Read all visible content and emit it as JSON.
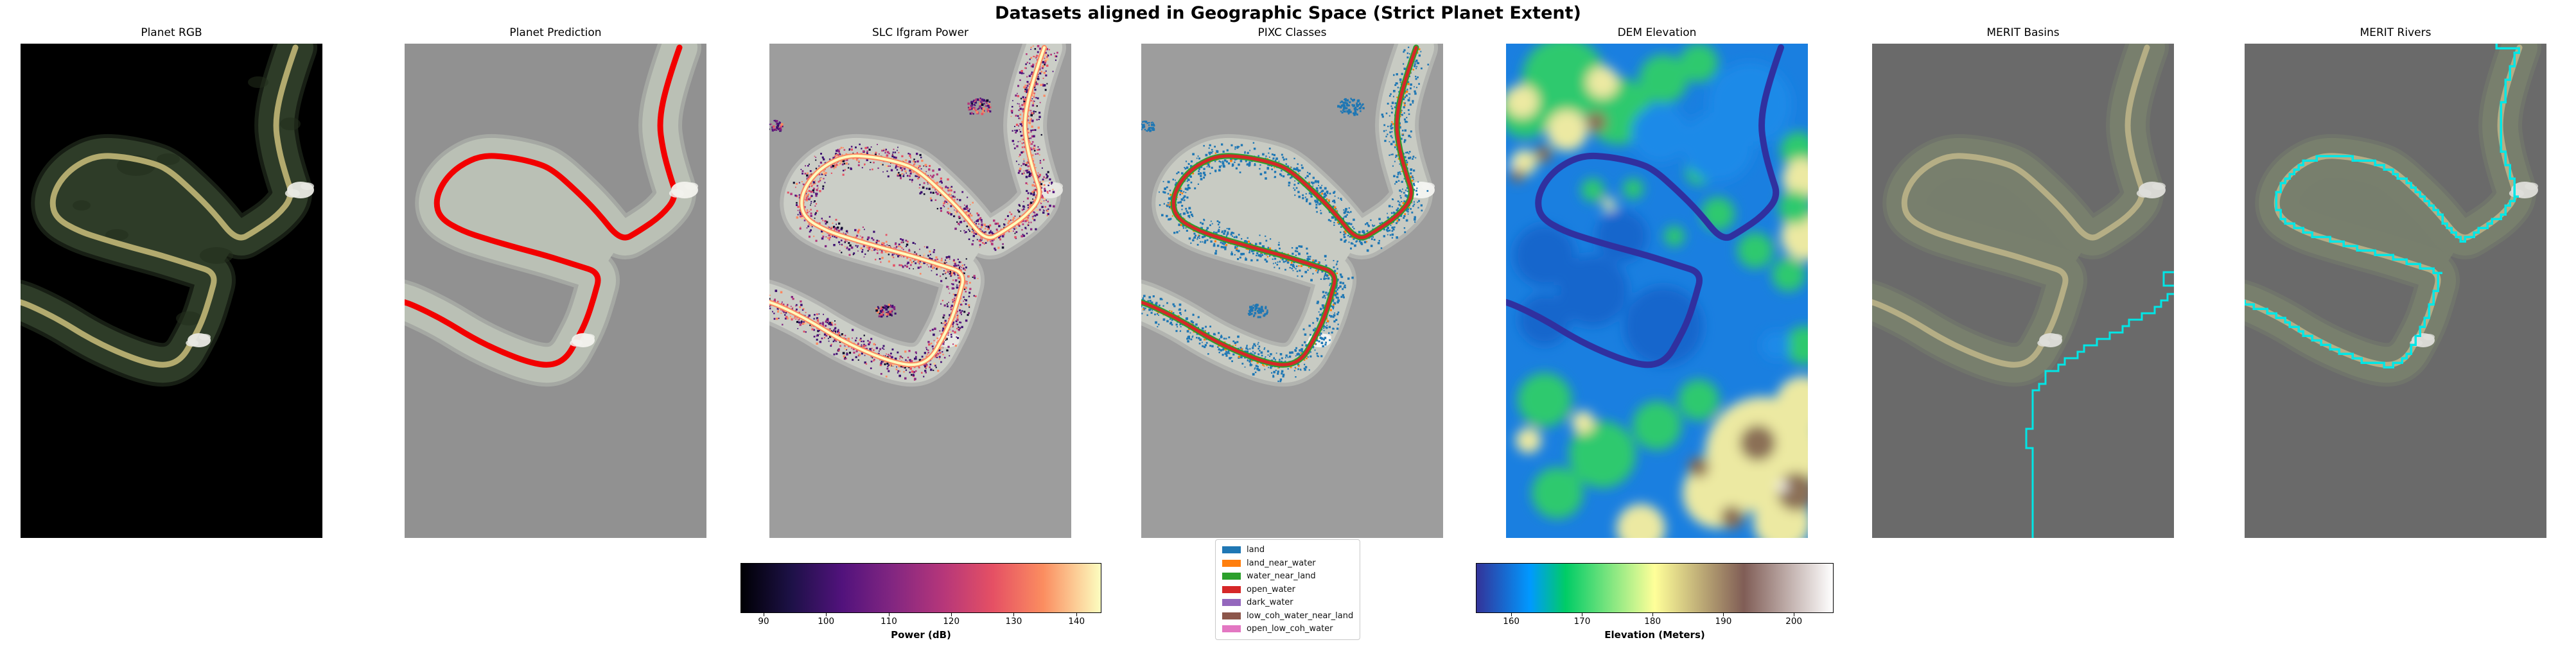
{
  "figure": {
    "title": "Datasets aligned in Geographic Space (Strict Planet Extent)",
    "background": "#ffffff"
  },
  "panels": [
    {
      "id": "planet-rgb",
      "title": "Planet RGB",
      "colors": {
        "background": "#000000",
        "swath": "#2e3c28",
        "river": "#b2aa6e",
        "cloud": "#e9e9e3",
        "texture": "#222e1b"
      }
    },
    {
      "id": "planet-prediction",
      "title": "Planet Prediction",
      "colors": {
        "background": "#919191",
        "swath": "#bac0b5",
        "river": "#f20000",
        "cloud": "#f2f2ee"
      }
    },
    {
      "id": "slc-ifgram-power",
      "title": "SLC Ifgram Power",
      "colors": {
        "background": "#9d9d9d",
        "swath": "#cbcec7",
        "core": "#fb8861",
        "core_bright": "#fcfdbf",
        "cloud": "#e8e8e4",
        "speckle": [
          "#0e0b2b",
          "#3b0f70",
          "#3b0f70",
          "#51127c",
          "#51127c",
          "#812581",
          "#b5367a",
          "#e65164",
          "#fb8861"
        ],
        "speckle_bright": [
          "#b5367a",
          "#e65164",
          "#fb8861",
          "#fec287"
        ]
      }
    },
    {
      "id": "pixc-classes",
      "title": "PIXC Classes",
      "colors": {
        "background": "#9d9d9d",
        "swath": "#c8cbc3",
        "land": "#1f77b4",
        "land_near_water": "#ff7f0e",
        "water_near_land": "#2ca02c",
        "open_water": "#d62728",
        "cloud": "#f4f4f1"
      }
    },
    {
      "id": "dem-elevation",
      "title": "DEM Elevation",
      "colors": {
        "background": "#1a7fe0",
        "river": "#30309f",
        "low_blue": "#1366cc",
        "light_blue": "#1a8ae8",
        "green": "#2fc96e",
        "yellow": "#ece9a2",
        "brown": "#8b6f56",
        "peak": "#f4f0e8"
      }
    },
    {
      "id": "merit-basins",
      "title": "MERIT Basins",
      "colors": {
        "background": "#6a6a6a",
        "swath": "#78806e",
        "river": "#b5ae85",
        "line": "#00e6e6",
        "cloud": "#dededa"
      }
    },
    {
      "id": "merit-rivers",
      "title": "MERIT Rivers",
      "colors": {
        "background": "#6a6a6a",
        "swath": "#78806e",
        "river": "#b5ae85",
        "line": "#00e6e6",
        "cloud": "#dededa"
      }
    }
  ],
  "colorbars": [
    {
      "for": "slc-ifgram-power",
      "label": "Power (dB)",
      "colormap": "magma",
      "ticks": [
        "90",
        "100",
        "110",
        "120",
        "130",
        "140"
      ],
      "tick_percents": [
        6.4,
        23.7,
        41.1,
        58.4,
        75.7,
        93.1
      ],
      "gradient": [
        [
          "0%",
          "#000004"
        ],
        [
          "14%",
          "#1d1147"
        ],
        [
          "28%",
          "#51127c"
        ],
        [
          "42%",
          "#822681"
        ],
        [
          "56%",
          "#b5367a"
        ],
        [
          "70%",
          "#e55064"
        ],
        [
          "84%",
          "#fb8d60"
        ],
        [
          "100%",
          "#fcfdbf"
        ]
      ]
    },
    {
      "for": "dem-elevation",
      "label": "Elevation (Meters)",
      "colormap": "terrain",
      "ticks": [
        "160",
        "170",
        "180",
        "190",
        "200"
      ],
      "tick_percents": [
        9.9,
        29.7,
        49.4,
        69.2,
        88.9
      ],
      "gradient": [
        [
          "0%",
          "#333399"
        ],
        [
          "15%",
          "#0099ff"
        ],
        [
          "25%",
          "#00cc66"
        ],
        [
          "50%",
          "#ffff99"
        ],
        [
          "75%",
          "#805d56"
        ],
        [
          "100%",
          "#ffffff"
        ]
      ]
    }
  ],
  "legend": {
    "for": "pixc-classes",
    "entries": [
      {
        "label": "land",
        "color": "#1f77b4"
      },
      {
        "label": "land_near_water",
        "color": "#ff7f0e"
      },
      {
        "label": "water_near_land",
        "color": "#2ca02c"
      },
      {
        "label": "open_water",
        "color": "#d62728"
      },
      {
        "label": "dark_water",
        "color": "#9467bd"
      },
      {
        "label": "low_coh_water_near_land",
        "color": "#8c564b"
      },
      {
        "label": "open_low_coh_water",
        "color": "#e377c2"
      }
    ]
  },
  "chart_data": {
    "type": "heatmap",
    "title": "Datasets aligned in Geographic Space (Strict Planet Extent)",
    "panels": [
      "Planet RGB",
      "Planet Prediction",
      "SLC Ifgram Power",
      "PIXC Classes",
      "DEM Elevation",
      "MERIT Basins",
      "MERIT Rivers"
    ],
    "colorbars": [
      {
        "panel": "SLC Ifgram Power",
        "label": "Power (dB)",
        "ticks": [
          90,
          100,
          110,
          120,
          130,
          140
        ],
        "range_estimate": [
          86,
          144
        ],
        "colormap": "magma"
      },
      {
        "panel": "DEM Elevation",
        "label": "Elevation (Meters)",
        "ticks": [
          160,
          170,
          180,
          190,
          200
        ],
        "range_estimate": [
          155,
          206
        ],
        "colormap": "terrain"
      }
    ],
    "legend": {
      "panel": "PIXC Classes",
      "entries": [
        "land",
        "land_near_water",
        "water_near_land",
        "open_water",
        "dark_water",
        "low_coh_water_near_land",
        "open_low_coh_water"
      ]
    },
    "layout": "7 co-registered map panels in one row sharing the same river-meander extent; legend and colorbars below panels"
  }
}
